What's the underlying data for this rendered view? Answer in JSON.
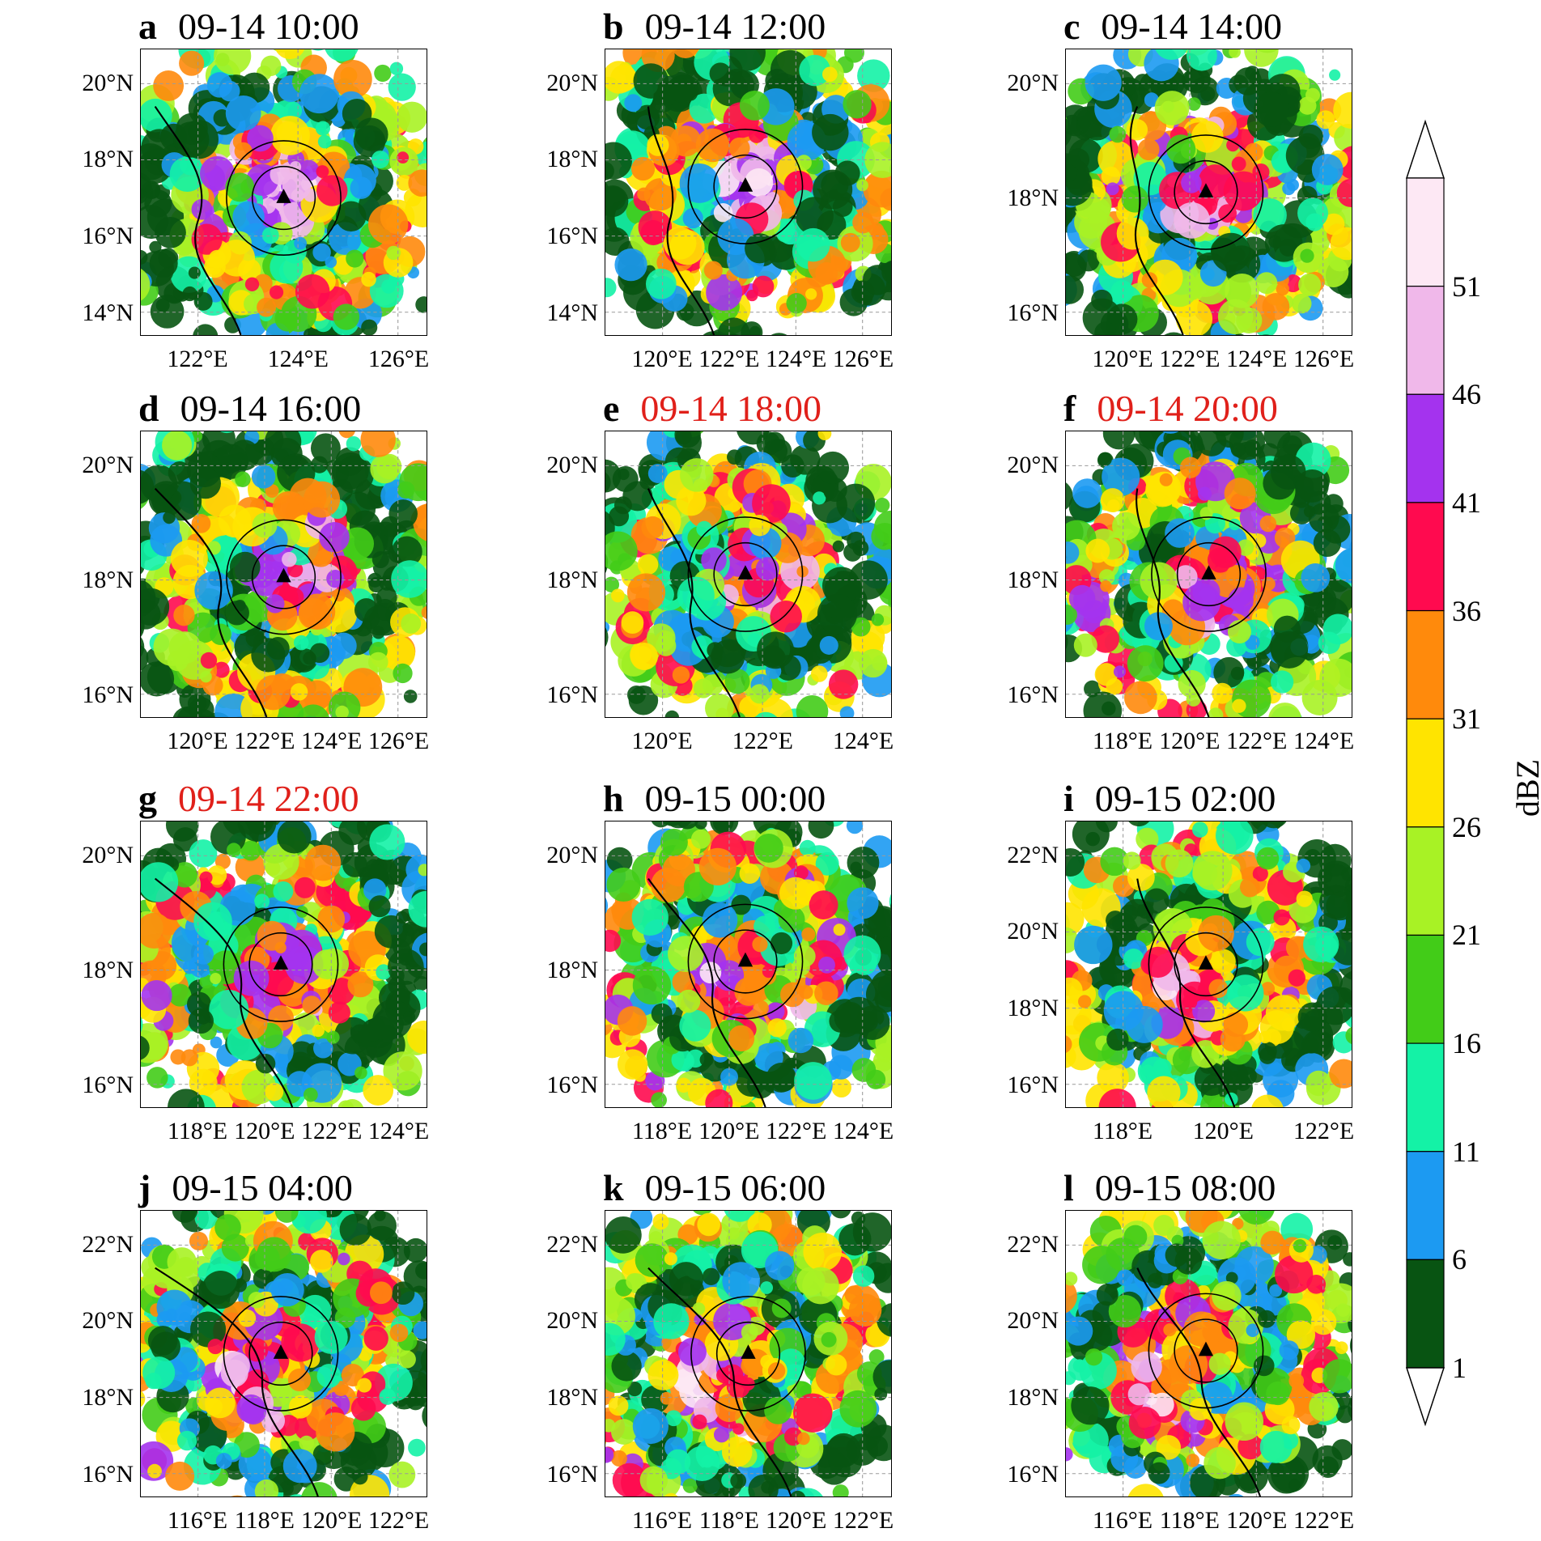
{
  "panels": [
    {
      "letter": "a",
      "time": "09-14 10:00",
      "highlight": false,
      "lat_labels": [
        "20°N",
        "18°N",
        "16°N",
        "14°N"
      ],
      "lon_labels": [
        "122°E",
        "124°E",
        "126°E"
      ],
      "eye_pos": [
        0.5,
        0.52
      ]
    },
    {
      "letter": "b",
      "time": "09-14 12:00",
      "highlight": false,
      "lat_labels": [
        "20°N",
        "18°N",
        "16°N",
        "14°N"
      ],
      "lon_labels": [
        "120°E",
        "122°E",
        "124°E",
        "126°E"
      ],
      "eye_pos": [
        0.49,
        0.48
      ]
    },
    {
      "letter": "c",
      "time": "09-14 14:00",
      "highlight": false,
      "lat_labels": [
        "20°N",
        "18°N",
        "16°N"
      ],
      "lon_labels": [
        "120°E",
        "122°E",
        "124°E",
        "126°E"
      ],
      "eye_pos": [
        0.49,
        0.5
      ]
    },
    {
      "letter": "d",
      "time": "09-14 16:00",
      "highlight": false,
      "lat_labels": [
        "20°N",
        "18°N",
        "16°N"
      ],
      "lon_labels": [
        "120°E",
        "122°E",
        "124°E",
        "126°E"
      ],
      "eye_pos": [
        0.5,
        0.51
      ]
    },
    {
      "letter": "e",
      "time": "09-14 18:00",
      "highlight": true,
      "lat_labels": [
        "20°N",
        "18°N",
        "16°N"
      ],
      "lon_labels": [
        "120°E",
        "122°E",
        "124°E"
      ],
      "eye_pos": [
        0.49,
        0.5
      ]
    },
    {
      "letter": "f",
      "time": "09-14 20:00",
      "highlight": true,
      "lat_labels": [
        "20°N",
        "18°N",
        "16°N"
      ],
      "lon_labels": [
        "118°E",
        "120°E",
        "122°E",
        "124°E"
      ],
      "eye_pos": [
        0.5,
        0.5
      ]
    },
    {
      "letter": "g",
      "time": "09-14 22:00",
      "highlight": true,
      "lat_labels": [
        "20°N",
        "18°N",
        "16°N"
      ],
      "lon_labels": [
        "118°E",
        "120°E",
        "122°E",
        "124°E"
      ],
      "eye_pos": [
        0.49,
        0.5
      ]
    },
    {
      "letter": "h",
      "time": "09-15 00:00",
      "highlight": false,
      "lat_labels": [
        "20°N",
        "18°N",
        "16°N"
      ],
      "lon_labels": [
        "118°E",
        "120°E",
        "122°E",
        "124°E"
      ],
      "eye_pos": [
        0.49,
        0.49
      ]
    },
    {
      "letter": "i",
      "time": "09-15 02:00",
      "highlight": false,
      "lat_labels": [
        "22°N",
        "20°N",
        "18°N",
        "16°N"
      ],
      "lon_labels": [
        "118°E",
        "120°E",
        "122°E"
      ],
      "eye_pos": [
        0.49,
        0.5
      ]
    },
    {
      "letter": "j",
      "time": "09-15 04:00",
      "highlight": false,
      "lat_labels": [
        "22°N",
        "20°N",
        "18°N",
        "16°N"
      ],
      "lon_labels": [
        "116°E",
        "118°E",
        "120°E",
        "122°E"
      ],
      "eye_pos": [
        0.49,
        0.5
      ]
    },
    {
      "letter": "k",
      "time": "09-15 06:00",
      "highlight": false,
      "lat_labels": [
        "22°N",
        "20°N",
        "18°N",
        "16°N"
      ],
      "lon_labels": [
        "116°E",
        "118°E",
        "120°E",
        "122°E"
      ],
      "eye_pos": [
        0.5,
        0.5
      ]
    },
    {
      "letter": "l",
      "time": "09-15 08:00",
      "highlight": false,
      "lat_labels": [
        "22°N",
        "20°N",
        "18°N",
        "16°N"
      ],
      "lon_labels": [
        "116°E",
        "118°E",
        "120°E",
        "122°E"
      ],
      "eye_pos": [
        0.49,
        0.49
      ]
    }
  ],
  "colorbar": {
    "title": "dBZ",
    "levels": [
      "51",
      "46",
      "41",
      "36",
      "31",
      "26",
      "21",
      "16",
      "11",
      "6",
      "1"
    ],
    "colors_top_to_bottom": [
      "#fde8f4",
      "#f0b8ea",
      "#a433ee",
      "#ff0a4f",
      "#ff8a0c",
      "#ffe400",
      "#a8f225",
      "#42cc18",
      "#14f2a6",
      "#1c9af2",
      "#085412"
    ],
    "top_arrow_color": "#ffffff",
    "bottom_arrow_color": "#ffffff"
  },
  "colors": {
    "title_highlight": "#e0201a",
    "eye_marker": "#000000",
    "grid": "#9a9a9a"
  }
}
